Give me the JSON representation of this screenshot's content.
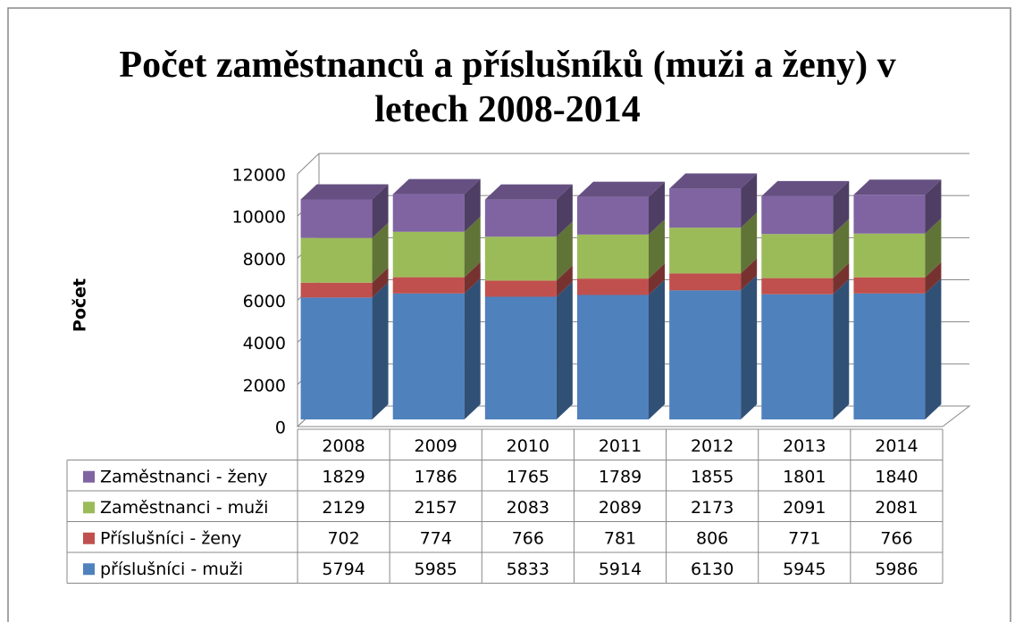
{
  "chart_data": {
    "type": "bar3d_stacked",
    "title": "Počet zaměstnanců a příslušníků (muži a ženy) v letech 2008-2014",
    "y_label": "Počet",
    "categories": [
      "2008",
      "2009",
      "2010",
      "2011",
      "2012",
      "2013",
      "2014"
    ],
    "series": [
      {
        "name": "příslušníci - muži",
        "color": "#4f81bd",
        "values": [
          5794,
          5985,
          5833,
          5914,
          6130,
          5945,
          5986
        ]
      },
      {
        "name": "Příslušníci - ženy",
        "color": "#c0504d",
        "values": [
          702,
          774,
          766,
          781,
          806,
          771,
          766
        ]
      },
      {
        "name": "Zaměstnanci - muži",
        "color": "#9bbb59",
        "values": [
          2129,
          2157,
          2083,
          2089,
          2173,
          2091,
          2081
        ]
      },
      {
        "name": "Zaměstnanci - ženy",
        "color": "#8064a2",
        "values": [
          1829,
          1786,
          1765,
          1789,
          1855,
          1801,
          1840
        ]
      }
    ],
    "ylim": [
      0,
      12000
    ],
    "yticks": [
      0,
      2000,
      4000,
      6000,
      8000,
      10000,
      12000
    ],
    "grid": true
  }
}
